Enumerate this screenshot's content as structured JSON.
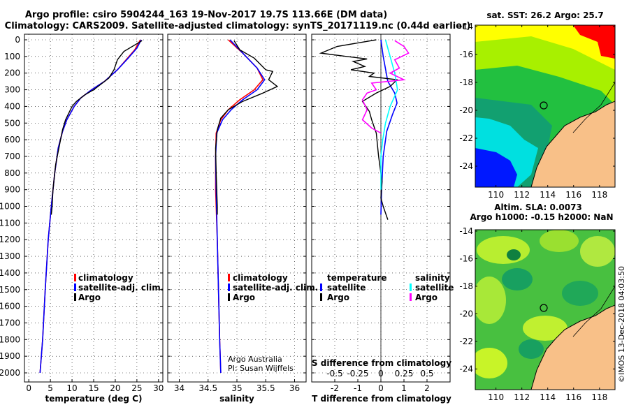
{
  "header": {
    "title_line1": "Argo profile: csiro 5904244_163 19-Nov-2017 19.7S 113.66E (DM data)",
    "title_line2": "Climatology: CARS2009. Satellite-adjusted climatology: synTS_20171119.nc (0.44d earlier)"
  },
  "colors": {
    "climatology": "#ff0000",
    "satellite_adj": "#0000ff",
    "argo": "#000000",
    "argo_salinity_diff": "#ff00ff",
    "satellite_salinity_diff": "#00ffff",
    "land": "#f8c088"
  },
  "chart_data": [
    {
      "type": "line",
      "id": "temperature",
      "xlabel": "temperature (deg C)",
      "xlim": [
        -1,
        31
      ],
      "xticks": [
        0,
        5,
        10,
        15,
        20,
        25,
        30
      ],
      "ylim": [
        0,
        2050
      ],
      "yticks": [
        0,
        100,
        200,
        300,
        400,
        500,
        600,
        700,
        800,
        900,
        1000,
        1100,
        1200,
        1300,
        1400,
        1500,
        1600,
        1700,
        1800,
        1900,
        2000
      ],
      "legend": [
        "climatology",
        "satellite-adj. clim.",
        "Argo"
      ],
      "series": [
        {
          "name": "climatology",
          "color": "#ff0000",
          "points": [
            [
              25.8,
              0
            ],
            [
              24.5,
              60
            ],
            [
              22.5,
              120
            ],
            [
              20.5,
              180
            ],
            [
              17.5,
              250
            ],
            [
              14.5,
              300
            ],
            [
              12,
              350
            ],
            [
              10.5,
              400
            ],
            [
              8.8,
              480
            ],
            [
              7.8,
              550
            ],
            [
              6.8,
              650
            ],
            [
              6,
              800
            ],
            [
              5.2,
              1000
            ],
            [
              4.5,
              1200
            ],
            [
              3.8,
              1500
            ],
            [
              3.2,
              1800
            ],
            [
              2.6,
              2000
            ]
          ]
        },
        {
          "name": "satellite-adj. clim.",
          "color": "#0000ff",
          "points": [
            [
              26,
              0
            ],
            [
              25,
              50
            ],
            [
              23,
              110
            ],
            [
              20.5,
              180
            ],
            [
              17.5,
              250
            ],
            [
              14.5,
              300
            ],
            [
              12,
              350
            ],
            [
              10.5,
              400
            ],
            [
              8.8,
              480
            ],
            [
              7.8,
              550
            ],
            [
              6.8,
              650
            ],
            [
              6,
              800
            ],
            [
              5.2,
              1000
            ],
            [
              4.5,
              1200
            ],
            [
              3.8,
              1500
            ],
            [
              3.2,
              1800
            ],
            [
              2.6,
              2000
            ]
          ]
        },
        {
          "name": "Argo",
          "color": "#000000",
          "points": [
            [
              26.2,
              5
            ],
            [
              22,
              70
            ],
            [
              20.5,
              120
            ],
            [
              19.7,
              180
            ],
            [
              18.5,
              230
            ],
            [
              15,
              300
            ],
            [
              13,
              330
            ],
            [
              11,
              370
            ],
            [
              10,
              400
            ],
            [
              8.5,
              480
            ],
            [
              7.8,
              540
            ],
            [
              7.2,
              620
            ],
            [
              6.2,
              750
            ],
            [
              5.6,
              900
            ],
            [
              5.4,
              1000
            ],
            [
              5.2,
              1050
            ]
          ]
        }
      ]
    },
    {
      "type": "line",
      "id": "salinity",
      "xlabel": "salinity",
      "xlim": [
        33.8,
        36.2
      ],
      "xticks": [
        34,
        34.5,
        35,
        35.5,
        36
      ],
      "ylim": [
        0,
        2050
      ],
      "legend": [
        "climatology",
        "satellite-adj. clim.",
        "Argo"
      ],
      "annotations": [
        "Argo Australia",
        "PI: Susan Wijffels"
      ],
      "series": [
        {
          "name": "climatology",
          "color": "#ff0000",
          "points": [
            [
              34.85,
              0
            ],
            [
              35.1,
              80
            ],
            [
              35.35,
              170
            ],
            [
              35.45,
              240
            ],
            [
              35.3,
              300
            ],
            [
              35.05,
              360
            ],
            [
              34.85,
              420
            ],
            [
              34.72,
              480
            ],
            [
              34.64,
              560
            ],
            [
              34.63,
              700
            ],
            [
              34.63,
              900
            ],
            [
              34.66,
              1200
            ],
            [
              34.68,
              1500
            ],
            [
              34.7,
              1800
            ],
            [
              34.72,
              2000
            ]
          ]
        },
        {
          "name": "satellite-adj. clim.",
          "color": "#0000ff",
          "points": [
            [
              34.88,
              0
            ],
            [
              35.1,
              80
            ],
            [
              35.35,
              170
            ],
            [
              35.48,
              240
            ],
            [
              35.35,
              300
            ],
            [
              35.1,
              360
            ],
            [
              34.9,
              420
            ],
            [
              34.75,
              480
            ],
            [
              34.65,
              560
            ],
            [
              34.63,
              700
            ],
            [
              34.64,
              900
            ],
            [
              34.66,
              1200
            ],
            [
              34.68,
              1500
            ],
            [
              34.7,
              1800
            ],
            [
              34.72,
              2000
            ]
          ]
        },
        {
          "name": "Argo",
          "color": "#000000",
          "points": [
            [
              34.95,
              5
            ],
            [
              35.05,
              60
            ],
            [
              35.3,
              110
            ],
            [
              35.5,
              180
            ],
            [
              35.62,
              190
            ],
            [
              35.55,
              240
            ],
            [
              35.7,
              280
            ],
            [
              35.45,
              320
            ],
            [
              35.1,
              370
            ],
            [
              34.85,
              420
            ],
            [
              34.72,
              470
            ],
            [
              34.66,
              540
            ],
            [
              34.63,
              650
            ],
            [
              34.64,
              800
            ],
            [
              34.65,
              900
            ],
            [
              34.66,
              1000
            ],
            [
              34.66,
              1050
            ]
          ]
        }
      ]
    },
    {
      "type": "line",
      "id": "differences",
      "xlabel": "T difference from climatology",
      "secondary_xlabel": "S difference from climatology",
      "xlim": [
        -3,
        3
      ],
      "xticks": [
        -2,
        -1,
        0,
        1,
        2
      ],
      "s_xticks": [
        -0.5,
        -0.25,
        0,
        0.25,
        0.5
      ],
      "legend": {
        "temperature_header": "temperature",
        "salinity_header": "salinity",
        "entries": [
          "satellite",
          "Argo",
          "satellite",
          "Argo"
        ]
      },
      "series": [
        {
          "name": "temperature satellite",
          "color": "#0000ff",
          "points": [
            [
              0,
              0
            ],
            [
              0.1,
              100
            ],
            [
              0.3,
              250
            ],
            [
              0.6,
              320
            ],
            [
              0.7,
              380
            ],
            [
              0.5,
              450
            ],
            [
              0.25,
              550
            ],
            [
              0.1,
              700
            ],
            [
              0.03,
              900
            ],
            [
              0,
              1050
            ]
          ]
        },
        {
          "name": "temperature Argo",
          "color": "#000000",
          "points": [
            [
              -0.2,
              0
            ],
            [
              -1.9,
              40
            ],
            [
              -2.6,
              80
            ],
            [
              -1.5,
              100
            ],
            [
              -0.6,
              115
            ],
            [
              -1.2,
              130
            ],
            [
              -0.7,
              160
            ],
            [
              -1.3,
              180
            ],
            [
              -0.3,
              200
            ],
            [
              -0.5,
              220
            ],
            [
              0.7,
              240
            ],
            [
              0.4,
              280
            ],
            [
              -0.2,
              320
            ],
            [
              -0.8,
              370
            ],
            [
              -0.5,
              430
            ],
            [
              -0.4,
              480
            ],
            [
              -0.2,
              560
            ],
            [
              -0.1,
              700
            ],
            [
              0.05,
              850
            ],
            [
              0,
              950
            ],
            [
              0.1,
              1000
            ],
            [
              0.3,
              1080
            ]
          ]
        },
        {
          "name": "salinity satellite",
          "color": "#00ffff",
          "points": [
            [
              0.05,
              0
            ],
            [
              0.1,
              100
            ],
            [
              0.15,
              200
            ],
            [
              0.18,
              300
            ],
            [
              0.1,
              400
            ],
            [
              0.05,
              500
            ],
            [
              0.02,
              600
            ],
            [
              0,
              700
            ],
            [
              0,
              800
            ],
            [
              0,
              900
            ]
          ]
        },
        {
          "name": "salinity Argo",
          "color": "#ff00ff",
          "points": [
            [
              0.15,
              5
            ],
            [
              0.25,
              40
            ],
            [
              0.3,
              80
            ],
            [
              0.15,
              120
            ],
            [
              0.2,
              170
            ],
            [
              0.1,
              200
            ],
            [
              0.25,
              240
            ],
            [
              -0.1,
              260
            ],
            [
              -0.05,
              300
            ],
            [
              -0.15,
              320
            ],
            [
              -0.2,
              360
            ],
            [
              -0.15,
              420
            ],
            [
              -0.2,
              480
            ],
            [
              -0.1,
              530
            ],
            [
              0,
              560
            ]
          ]
        }
      ]
    },
    {
      "type": "heatmap",
      "id": "sst_map",
      "title": "sat. SST: 26.2 Argo: 25.7",
      "xticks": [
        110,
        112,
        114,
        116,
        118
      ],
      "yticks": [
        -14,
        -16,
        -18,
        -20,
        -22,
        -24
      ],
      "xlim": [
        108.4,
        119.2
      ],
      "ylim": [
        -25.5,
        -13.9
      ],
      "marker": [
        113.66,
        -19.7
      ]
    },
    {
      "type": "heatmap",
      "id": "sla_map",
      "title_line1": "Altim. SLA: 0.0073",
      "title_line2": "Argo h1000: -0.15 h2000: NaN",
      "xticks": [
        110,
        112,
        114,
        116,
        118
      ],
      "yticks": [
        -14,
        -16,
        -18,
        -20,
        -22,
        -24
      ],
      "xlim": [
        108.4,
        119.2
      ],
      "ylim": [
        -25.5,
        -13.9
      ],
      "marker": [
        113.66,
        -19.7
      ]
    }
  ],
  "footer": {
    "credit": "©IMOS 13-Dec-2018 04:03:50"
  }
}
